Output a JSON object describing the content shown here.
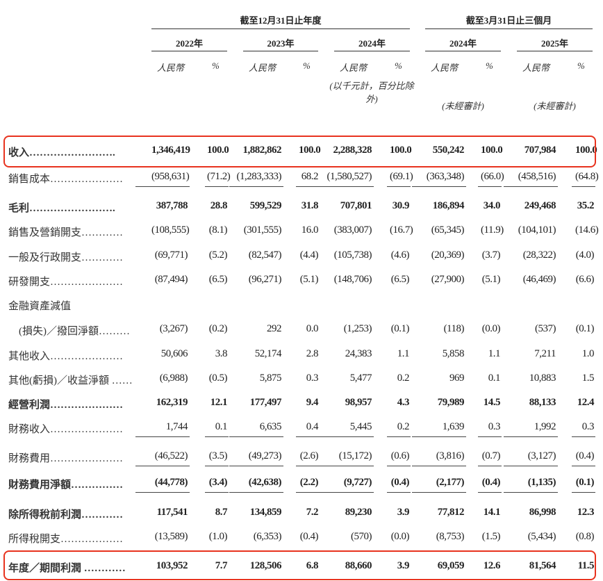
{
  "header": {
    "group_fy": "截至12月31日止年度",
    "group_q": "截至3月31日止三個月",
    "years": [
      "2022年",
      "2023年",
      "2024年",
      "2024年",
      "2025年"
    ],
    "currency": "人民幣",
    "percent": "%",
    "unit_note": "(以千元計，百分比除外)",
    "unaudited": "(未經審計)"
  },
  "accent_color": "#e8321e",
  "rows": [
    {
      "label": "收入…………………….",
      "bold": true,
      "values": [
        "1,346,419",
        "100.0",
        "1,882,862",
        "100.0",
        "2,288,328",
        "100.0",
        "550,242",
        "100.0",
        "707,984",
        "100.0"
      ]
    },
    {
      "label": "銷售成本…………………",
      "values": [
        "(958,631)",
        "(71.2)",
        "(1,283,333)",
        "68.2",
        "(1,580,527)",
        "(69.1)",
        "(363,348)",
        "(66.0)",
        "(458,516)",
        "(64.8)"
      ]
    },
    {
      "label": "毛利…………………….",
      "bold": true,
      "values": [
        "387,788",
        "28.8",
        "599,529",
        "31.8",
        "707,801",
        "30.9",
        "186,894",
        "34.0",
        "249,468",
        "35.2"
      ]
    },
    {
      "label": "銷售及營銷開支…………",
      "values": [
        "(108,555)",
        "(8.1)",
        "(301,555)",
        "16.0",
        "(383,007)",
        "(16.7)",
        "(65,345)",
        "(11.9)",
        "(104,101)",
        "(14.6)"
      ]
    },
    {
      "label": "一般及行政開支…………",
      "values": [
        "(69,771)",
        "(5.2)",
        "(82,547)",
        "(4.4)",
        "(105,738)",
        "(4.6)",
        "(20,369)",
        "(3.7)",
        "(28,322)",
        "(4.0)"
      ]
    },
    {
      "label": "研發開支…………………",
      "values": [
        "(87,494)",
        "(6.5)",
        "(96,271)",
        "(5.1)",
        "(148,706)",
        "(6.5)",
        "(27,900)",
        "(5.1)",
        "(46,469)",
        "(6.6)"
      ]
    },
    {
      "label": "金融資產減值",
      "values": [
        "",
        "",
        "",
        "",
        "",
        "",
        "",
        "",
        "",
        ""
      ]
    },
    {
      "label": "　(損失)／撥回淨額………",
      "values": [
        "(3,267)",
        "(0.2)",
        "292",
        "0.0",
        "(1,253)",
        "(0.1)",
        "(118)",
        "(0.0)",
        "(537)",
        "(0.1)"
      ]
    },
    {
      "label": "其他收入…………………",
      "values": [
        "50,606",
        "3.8",
        "52,174",
        "2.8",
        "24,383",
        "1.1",
        "5,858",
        "1.1",
        "7,211",
        "1.0"
      ]
    },
    {
      "label": "其他(虧損)／收益淨額 ……",
      "values": [
        "(6,988)",
        "(0.5)",
        "5,875",
        "0.3",
        "5,477",
        "0.2",
        "969",
        "0.1",
        "10,883",
        "1.5"
      ]
    },
    {
      "label": "經營利潤…………………",
      "bold": true,
      "values": [
        "162,319",
        "12.1",
        "177,497",
        "9.4",
        "98,957",
        "4.3",
        "79,989",
        "14.5",
        "88,133",
        "12.4"
      ]
    },
    {
      "label": "財務收入…………………",
      "values": [
        "1,744",
        "0.1",
        "6,635",
        "0.4",
        "5,445",
        "0.2",
        "1,639",
        "0.3",
        "1,992",
        "0.3"
      ]
    },
    {
      "label": "財務費用…………………",
      "values": [
        "(46,522)",
        "(3.5)",
        "(49,273)",
        "(2.6)",
        "(15,172)",
        "(0.6)",
        "(3,816)",
        "(0.7)",
        "(3,127)",
        "(0.4)"
      ]
    },
    {
      "label": "財務費用淨額……………",
      "bold": true,
      "values": [
        "(44,778)",
        "(3.4)",
        "(42,638)",
        "(2.2)",
        "(9,727)",
        "(0.4)",
        "(2,177)",
        "(0.4)",
        "(1,135)",
        "(0.1)"
      ]
    },
    {
      "label": "除所得稅前利潤…………",
      "bold": true,
      "values": [
        "117,541",
        "8.7",
        "134,859",
        "7.2",
        "89,230",
        "3.9",
        "77,812",
        "14.1",
        "86,998",
        "12.3"
      ]
    },
    {
      "label": "所得稅開支………………",
      "values": [
        "(13,589)",
        "(1.0)",
        "(6,353)",
        "(0.4)",
        "(570)",
        "(0.0)",
        "(8,753)",
        "(1.5)",
        "(5,434)",
        "(0.8)"
      ]
    },
    {
      "label": "年度／期間利潤 …………",
      "bold": true,
      "values": [
        "103,952",
        "7.7",
        "128,506",
        "6.8",
        "88,660",
        "3.9",
        "69,059",
        "12.6",
        "81,564",
        "11.5"
      ]
    }
  ]
}
